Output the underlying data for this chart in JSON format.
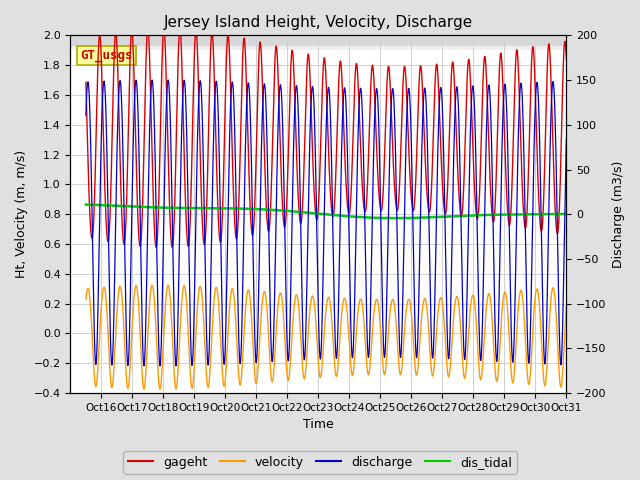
{
  "title": "Jersey Island Height, Velocity, Discharge",
  "xlabel": "Time",
  "ylabel_left": "Ht, Velocity (m, m/s)",
  "ylabel_right": "Discharge (m3/s)",
  "ylim_left": [
    -0.4,
    2.0
  ],
  "ylim_right": [
    -200,
    200
  ],
  "xlim_days": [
    15,
    31
  ],
  "xtick_labels": [
    "Oct 16",
    "Oct 17",
    "Oct 18",
    "Oct 19",
    "Oct 20",
    "Oct 21",
    "Oct 22",
    "Oct 23",
    "Oct 24",
    "Oct 25",
    "Oct 26",
    "Oct 27",
    "Oct 28",
    "Oct 29",
    "Oct 30",
    "Oct 31"
  ],
  "xtick_positions": [
    16,
    17,
    18,
    19,
    20,
    21,
    22,
    23,
    24,
    25,
    26,
    27,
    28,
    29,
    30,
    31
  ],
  "legend_labels": [
    "gageht",
    "velocity",
    "discharge",
    "dis_tidal"
  ],
  "legend_colors": [
    "#dd0000",
    "#ff9900",
    "#0000cc",
    "#00cc00"
  ],
  "line_colors": {
    "gageht": "#dd0000",
    "velocity": "#ff9900",
    "discharge": "#0000cc",
    "dis_tidal": "#00cc00"
  },
  "annotation_text": "GT_usgs",
  "annotation_color": "#cc0000",
  "annotation_bg": "#ffff99",
  "annotation_border": "#aaaa00",
  "background_color": "#e0e0e0",
  "plot_bg_color": "#d8d8d8",
  "inner_bg_color": "#ffffff",
  "shaded_top_color": "#d0d0d0",
  "grid_color": "#c8c8c8",
  "title_fontsize": 11,
  "axis_fontsize": 9,
  "tick_fontsize": 8,
  "legend_fontsize": 9,
  "tidal_period_hours": 12.42,
  "spring_neap_period_days": 14.77,
  "start_day": 15.5
}
